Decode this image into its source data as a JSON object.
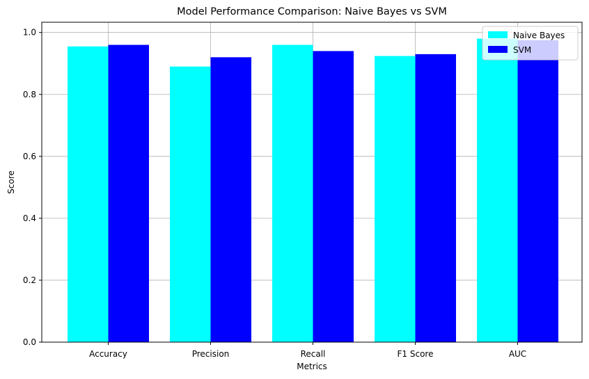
{
  "chart_data": {
    "type": "bar",
    "title": "Model Performance Comparison: Naive Bayes vs SVM",
    "xlabel": "Metrics",
    "ylabel": "Score",
    "categories": [
      "Accuracy",
      "Precision",
      "Recall",
      "F1 Score",
      "AUC"
    ],
    "series": [
      {
        "name": "Naive Bayes",
        "color": "#00ffff",
        "values": [
          0.955,
          0.89,
          0.96,
          0.924,
          0.98
        ]
      },
      {
        "name": "SVM",
        "color": "#0000ff",
        "values": [
          0.96,
          0.92,
          0.94,
          0.93,
          0.975
        ]
      }
    ],
    "ylim": [
      0,
      1.033
    ],
    "yticks": [
      "0.0",
      "0.2",
      "0.4",
      "0.6",
      "0.8",
      "1.0"
    ],
    "grid": true,
    "legend": "top-right"
  }
}
